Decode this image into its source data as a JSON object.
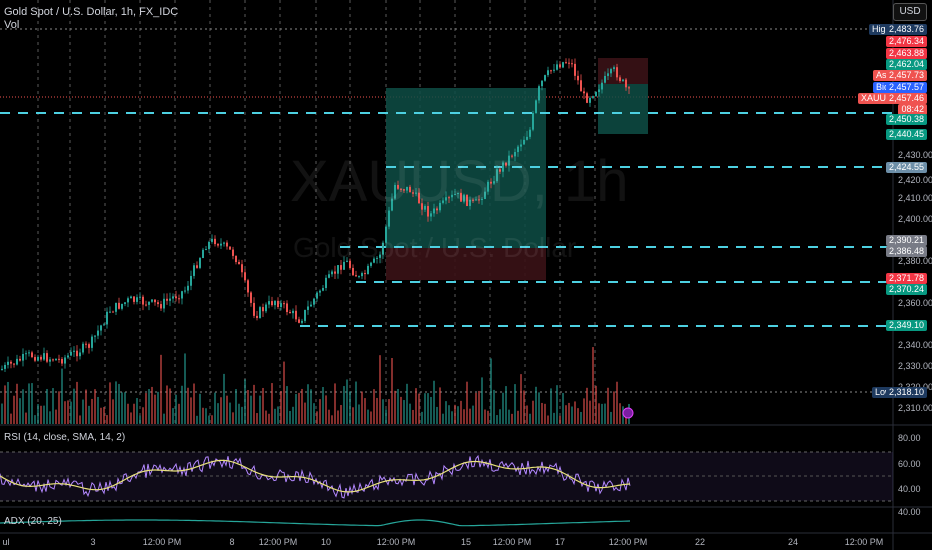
{
  "header": {
    "symbol_line": "Gold Spot / U.S. Dollar, 1h, FX_IDC",
    "vol_label": "Vol"
  },
  "watermark": {
    "ticker": "XAUUSD, 1h",
    "name": "Gold Spot / U.S. Dollar"
  },
  "currency_button": "USD",
  "price_tags": {
    "high_label": "High",
    "high_value": "2,483.76",
    "ask_label": "Ask",
    "bid_label": "Bid",
    "symbol_label": "XAUUSD",
    "low_label": "Low",
    "low_value": "2,318.10",
    "values": [
      "2,476.34",
      "2,463.88",
      "2,462.04",
      "2,457.73",
      "2,457.57",
      "2,457.46",
      "08:42",
      "2,450.38",
      "2,440.45",
      "2,424.55",
      "2,390.21",
      "2,386.48",
      "2,371.78",
      "2,370.24",
      "2,349.10"
    ]
  },
  "price_axis": [
    "2,430.00",
    "2,420.00",
    "2,410.00",
    "2,400.00",
    "2,380.00",
    "2,360.00",
    "2,340.00",
    "2,330.00",
    "2,320.00",
    "2,310.00"
  ],
  "rsi": {
    "label": "RSI (14, close, SMA, 14, 2)",
    "axis": [
      "80.00",
      "60.00",
      "40.00"
    ]
  },
  "adx": {
    "label": "ADX (20, 25)",
    "axis": [
      "40.00"
    ]
  },
  "time_axis": [
    "ul",
    "3",
    "12:00 PM",
    "8",
    "12:00 PM",
    "10",
    "12:00 PM",
    "15",
    "12:00 PM",
    "17",
    "12:00 PM",
    "22",
    "24",
    "12:00 PM"
  ],
  "colors": {
    "up": "#26a69a",
    "down": "#ef5350",
    "level_line": "#4dd0e1",
    "rsi_line": "#b388ff",
    "rsi_ma": "#e8e27a",
    "adx_line": "#26a69a",
    "high_tag": "#1e3a5f",
    "ask_tag": "#ef5350",
    "bid_tag": "#2962ff",
    "symbol_tag": "#ef5350",
    "teal_tag": "#089981",
    "red_tag": "#f23645",
    "grey_tag": "#787b86"
  }
}
